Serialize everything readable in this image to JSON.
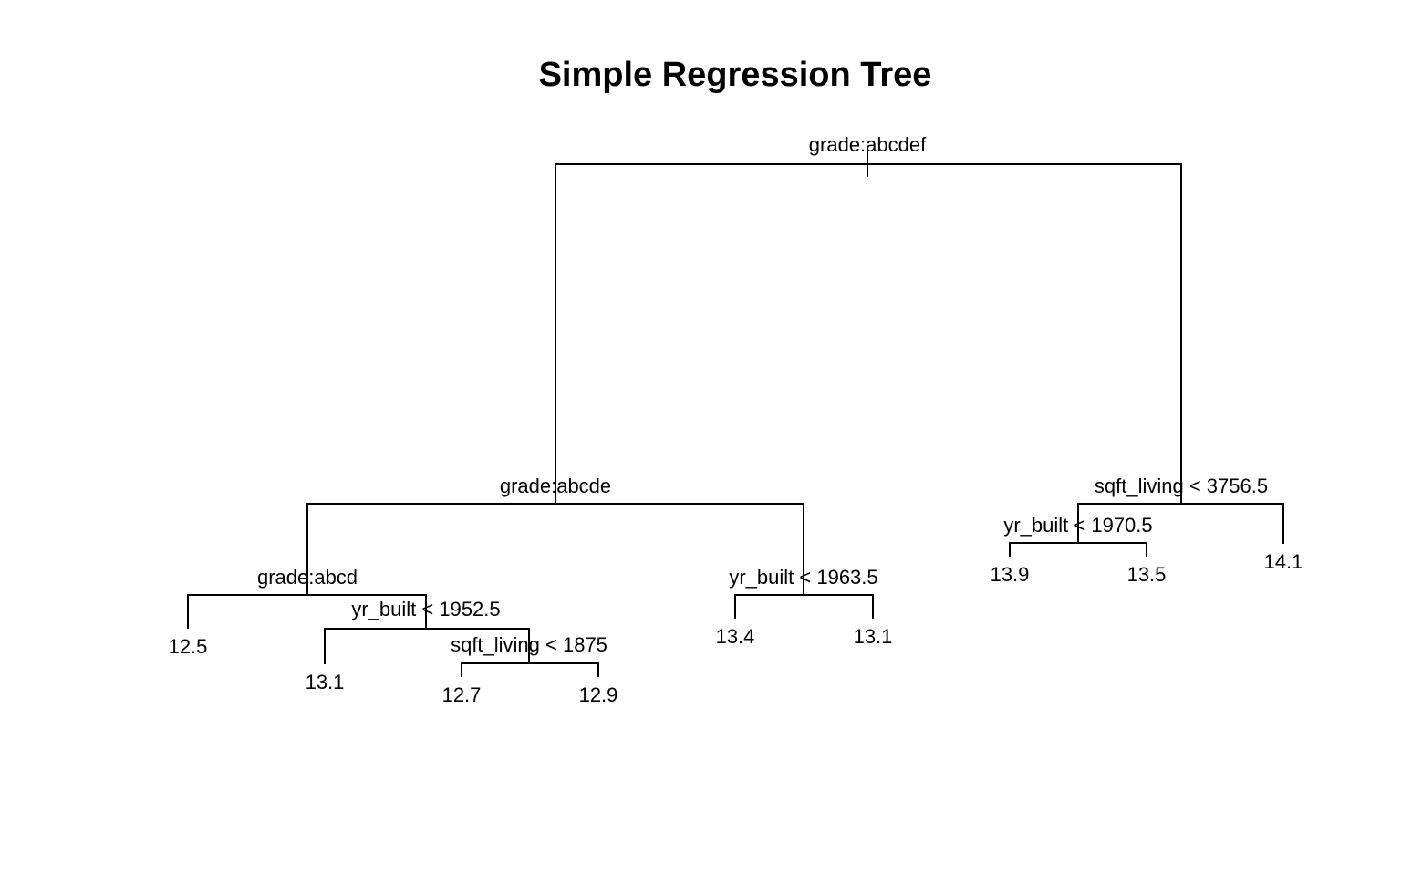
{
  "title": "Simple Regression Tree",
  "tree": {
    "root_split": "grade:abcdef",
    "splits": {
      "grade_abcde": "grade:abcde",
      "grade_abcd": "grade:abcd",
      "yr_built_1952": "yr_built < 1952.5",
      "sqft_living_1875": "sqft_living < 1875",
      "yr_built_1963": "yr_built < 1963.5",
      "sqft_living_3756": "sqft_living < 3756.5",
      "yr_built_1970": "yr_built < 1970.5"
    },
    "leaves": {
      "leaf_1": "12.5",
      "leaf_2": "13.1",
      "leaf_3": "12.7",
      "leaf_4": "12.9",
      "leaf_5": "13.4",
      "leaf_6": "13.1",
      "leaf_7": "13.9",
      "leaf_8": "13.5",
      "leaf_9": "14.1"
    }
  }
}
